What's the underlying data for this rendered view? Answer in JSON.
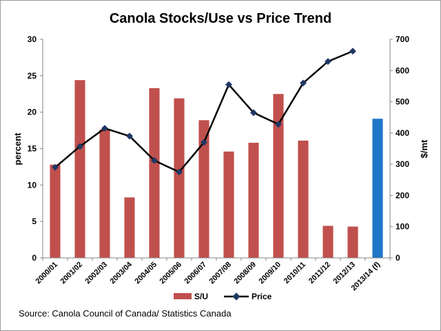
{
  "chart_data": {
    "type": "bar",
    "title": "Canola Stocks/Use vs Price Trend",
    "categories": [
      "2000/01",
      "2001/02",
      "2002/03",
      "2003/04",
      "2004/05",
      "2005/06",
      "2006/07",
      "2007/08",
      "2008/09",
      "2009/10",
      "2010/11",
      "2011/12",
      "2012/13",
      "2013/14 (f)"
    ],
    "ylabel": "percent",
    "y2label": "$/mt",
    "ylim": [
      0,
      30
    ],
    "yticks": [
      0,
      5,
      10,
      15,
      20,
      25,
      30
    ],
    "y2lim": [
      0,
      700
    ],
    "y2ticks": [
      0,
      100,
      200,
      300,
      400,
      500,
      600,
      700
    ],
    "grid": false,
    "legend_position": "bottom",
    "series": [
      {
        "name": "S/U",
        "type": "bar",
        "axis": "left",
        "color": "#C0504D",
        "highlight_color": "#1F77C8",
        "highlight_index": 13,
        "values": [
          12.8,
          24.4,
          17.6,
          8.3,
          23.3,
          21.9,
          18.9,
          14.6,
          15.8,
          22.5,
          16.1,
          4.4,
          4.3,
          19.1
        ]
      },
      {
        "name": "Price",
        "type": "line",
        "axis": "right",
        "color": "#000000",
        "marker_color": "#1F3864",
        "values": [
          290,
          357,
          415,
          390,
          312,
          275,
          370,
          555,
          465,
          428,
          560,
          629,
          662,
          null
        ]
      }
    ],
    "source": "Source: Canola Council of Canada/ Statistics Canada"
  }
}
